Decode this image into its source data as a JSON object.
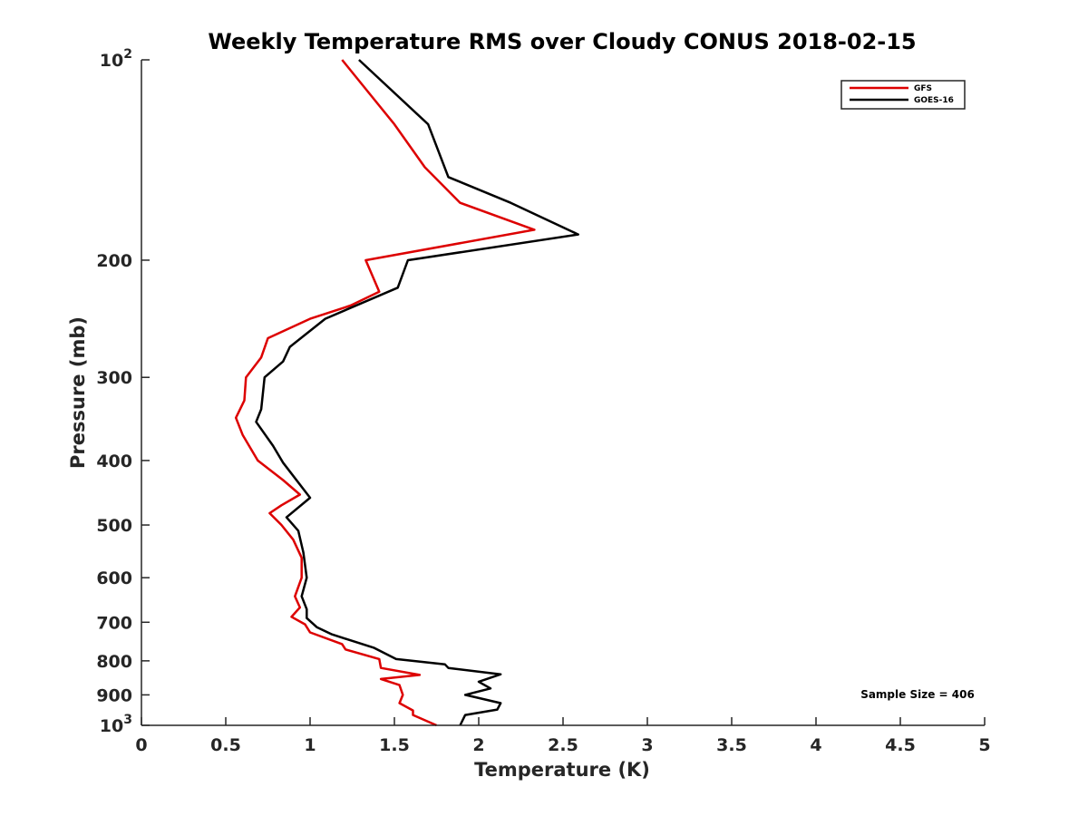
{
  "chart_data": {
    "type": "line",
    "title": "Weekly Temperature RMS over Cloudy CONUS 2018-02-15",
    "xlabel": "Temperature (K)",
    "ylabel": "Pressure (mb)",
    "xlim": [
      0,
      5
    ],
    "ylim": [
      100,
      1000
    ],
    "y_scale": "log",
    "y_direction": "reversed",
    "grid": false,
    "legend_position": "top-right",
    "x_ticks": [
      {
        "value": 0,
        "label": "0"
      },
      {
        "value": 0.5,
        "label": "0.5"
      },
      {
        "value": 1,
        "label": "1"
      },
      {
        "value": 1.5,
        "label": "1.5"
      },
      {
        "value": 2,
        "label": "2"
      },
      {
        "value": 2.5,
        "label": "2.5"
      },
      {
        "value": 3,
        "label": "3"
      },
      {
        "value": 3.5,
        "label": "3.5"
      },
      {
        "value": 4,
        "label": "4"
      },
      {
        "value": 4.5,
        "label": "4.5"
      },
      {
        "value": 5,
        "label": "5"
      }
    ],
    "y_ticks": [
      {
        "value": 100,
        "base": "10",
        "exp": "2"
      },
      {
        "value": 200,
        "label": "200"
      },
      {
        "value": 300,
        "label": "300"
      },
      {
        "value": 400,
        "label": "400"
      },
      {
        "value": 500,
        "label": "500"
      },
      {
        "value": 600,
        "label": "600"
      },
      {
        "value": 700,
        "label": "700"
      },
      {
        "value": 800,
        "label": "800"
      },
      {
        "value": 900,
        "label": "900"
      },
      {
        "value": 1000,
        "base": "10",
        "exp": "3"
      }
    ],
    "series": [
      {
        "name": "GFS",
        "color": "#dd0000",
        "points": [
          [
            1.19,
            100
          ],
          [
            1.5,
            125
          ],
          [
            1.68,
            145
          ],
          [
            1.89,
            164
          ],
          [
            2.33,
            180
          ],
          [
            1.33,
            200
          ],
          [
            1.41,
            223
          ],
          [
            1.24,
            234
          ],
          [
            1.0,
            245
          ],
          [
            0.75,
            262
          ],
          [
            0.71,
            280
          ],
          [
            0.62,
            300
          ],
          [
            0.61,
            325
          ],
          [
            0.56,
            345
          ],
          [
            0.6,
            366
          ],
          [
            0.69,
            400
          ],
          [
            0.84,
            428
          ],
          [
            0.94,
            450
          ],
          [
            0.83,
            467
          ],
          [
            0.76,
            480
          ],
          [
            0.83,
            500
          ],
          [
            0.9,
            526
          ],
          [
            0.95,
            560
          ],
          [
            0.95,
            600
          ],
          [
            0.91,
            640
          ],
          [
            0.94,
            665
          ],
          [
            0.89,
            687
          ],
          [
            0.97,
            705
          ],
          [
            1.0,
            725
          ],
          [
            1.19,
            755
          ],
          [
            1.21,
            769
          ],
          [
            1.41,
            795
          ],
          [
            1.42,
            820
          ],
          [
            1.65,
            840
          ],
          [
            1.42,
            852
          ],
          [
            1.53,
            870
          ],
          [
            1.55,
            900
          ],
          [
            1.53,
            926
          ],
          [
            1.61,
            950
          ],
          [
            1.61,
            965
          ],
          [
            1.75,
            1000
          ]
        ]
      },
      {
        "name": "GOES-16",
        "color": "#000000",
        "points": [
          [
            1.29,
            100
          ],
          [
            1.7,
            125
          ],
          [
            1.82,
            150
          ],
          [
            2.19,
            164
          ],
          [
            2.59,
            183
          ],
          [
            1.58,
            200
          ],
          [
            1.52,
            220
          ],
          [
            1.09,
            245
          ],
          [
            0.88,
            270
          ],
          [
            0.84,
            284
          ],
          [
            0.73,
            300
          ],
          [
            0.71,
            335
          ],
          [
            0.68,
            350
          ],
          [
            0.78,
            380
          ],
          [
            0.84,
            403
          ],
          [
            1.0,
            455
          ],
          [
            0.86,
            487
          ],
          [
            0.93,
            510
          ],
          [
            0.96,
            550
          ],
          [
            0.98,
            600
          ],
          [
            0.95,
            640
          ],
          [
            0.98,
            669
          ],
          [
            0.98,
            690
          ],
          [
            1.04,
            712
          ],
          [
            1.13,
            730
          ],
          [
            1.38,
            765
          ],
          [
            1.51,
            795
          ],
          [
            1.8,
            810
          ],
          [
            1.82,
            820
          ],
          [
            2.13,
            838
          ],
          [
            2.0,
            860
          ],
          [
            2.07,
            880
          ],
          [
            1.92,
            900
          ],
          [
            2.13,
            926
          ],
          [
            2.11,
            947
          ],
          [
            1.92,
            965
          ],
          [
            1.89,
            1000
          ]
        ]
      }
    ],
    "annotation": "Sample Size = 406"
  }
}
